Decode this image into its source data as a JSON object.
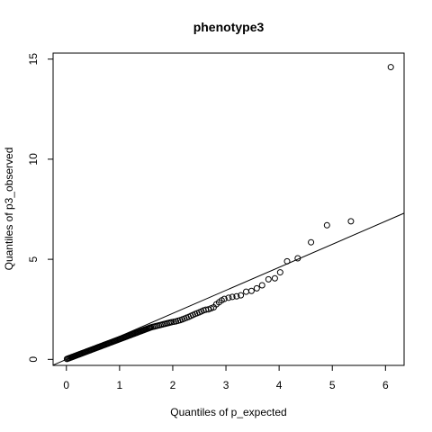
{
  "chart_data": {
    "type": "scatter",
    "title": "phenotype3",
    "xlabel": "Quantiles of p_expected",
    "ylabel": "Quantiles of p3_observed",
    "xlim": [
      -0.25,
      6.35
    ],
    "ylim": [
      -0.3,
      15.3
    ],
    "x_ticks": [
      0,
      1,
      2,
      3,
      4,
      5,
      6
    ],
    "y_ticks": [
      0,
      5,
      10,
      15
    ],
    "grid": false,
    "legend": "none",
    "reference_line": {
      "slope": 1.15,
      "intercept": 0.0
    },
    "points": [
      [
        0.01,
        0.02
      ],
      [
        0.03,
        0.04
      ],
      [
        0.05,
        0.06
      ],
      [
        0.07,
        0.08
      ],
      [
        0.09,
        0.1
      ],
      [
        0.11,
        0.12
      ],
      [
        0.13,
        0.14
      ],
      [
        0.15,
        0.16
      ],
      [
        0.17,
        0.18
      ],
      [
        0.19,
        0.2
      ],
      [
        0.21,
        0.22
      ],
      [
        0.23,
        0.24
      ],
      [
        0.25,
        0.26
      ],
      [
        0.27,
        0.28
      ],
      [
        0.29,
        0.3
      ],
      [
        0.31,
        0.32
      ],
      [
        0.33,
        0.34
      ],
      [
        0.35,
        0.36
      ],
      [
        0.37,
        0.38
      ],
      [
        0.39,
        0.4
      ],
      [
        0.41,
        0.42
      ],
      [
        0.43,
        0.44
      ],
      [
        0.45,
        0.46
      ],
      [
        0.47,
        0.48
      ],
      [
        0.49,
        0.5
      ],
      [
        0.51,
        0.52
      ],
      [
        0.53,
        0.54
      ],
      [
        0.55,
        0.56
      ],
      [
        0.57,
        0.58
      ],
      [
        0.59,
        0.6
      ],
      [
        0.61,
        0.62
      ],
      [
        0.63,
        0.64
      ],
      [
        0.65,
        0.66
      ],
      [
        0.67,
        0.68
      ],
      [
        0.69,
        0.7
      ],
      [
        0.71,
        0.72
      ],
      [
        0.73,
        0.74
      ],
      [
        0.75,
        0.76
      ],
      [
        0.77,
        0.78
      ],
      [
        0.79,
        0.8
      ],
      [
        0.81,
        0.82
      ],
      [
        0.83,
        0.84
      ],
      [
        0.85,
        0.86
      ],
      [
        0.87,
        0.88
      ],
      [
        0.89,
        0.9
      ],
      [
        0.91,
        0.92
      ],
      [
        0.93,
        0.94
      ],
      [
        0.95,
        0.96
      ],
      [
        0.97,
        0.98
      ],
      [
        0.99,
        1.0
      ],
      [
        1.01,
        1.02
      ],
      [
        1.03,
        1.04
      ],
      [
        1.05,
        1.06
      ],
      [
        1.07,
        1.08
      ],
      [
        1.09,
        1.1
      ],
      [
        1.11,
        1.12
      ],
      [
        1.13,
        1.14
      ],
      [
        1.15,
        1.16
      ],
      [
        1.17,
        1.18
      ],
      [
        1.19,
        1.2
      ],
      [
        1.21,
        1.22
      ],
      [
        1.23,
        1.24
      ],
      [
        1.25,
        1.26
      ],
      [
        1.27,
        1.28
      ],
      [
        1.29,
        1.3
      ],
      [
        1.31,
        1.32
      ],
      [
        1.33,
        1.34
      ],
      [
        1.35,
        1.36
      ],
      [
        1.37,
        1.38
      ],
      [
        1.39,
        1.4
      ],
      [
        1.41,
        1.42
      ],
      [
        1.43,
        1.44
      ],
      [
        1.45,
        1.46
      ],
      [
        1.47,
        1.48
      ],
      [
        1.49,
        1.5
      ],
      [
        1.51,
        1.52
      ],
      [
        1.53,
        1.54
      ],
      [
        1.55,
        1.56
      ],
      [
        1.57,
        1.58
      ],
      [
        1.59,
        1.6
      ],
      [
        1.62,
        1.62
      ],
      [
        1.65,
        1.64
      ],
      [
        1.68,
        1.66
      ],
      [
        1.71,
        1.68
      ],
      [
        1.74,
        1.7
      ],
      [
        1.77,
        1.72
      ],
      [
        1.8,
        1.74
      ],
      [
        1.83,
        1.76
      ],
      [
        1.86,
        1.78
      ],
      [
        1.89,
        1.8
      ],
      [
        1.92,
        1.82
      ],
      [
        1.95,
        1.84
      ],
      [
        1.98,
        1.86
      ],
      [
        2.02,
        1.88
      ],
      [
        2.06,
        1.9
      ],
      [
        2.1,
        1.93
      ],
      [
        2.14,
        1.96
      ],
      [
        2.18,
        2.0
      ],
      [
        2.22,
        2.04
      ],
      [
        2.26,
        2.08
      ],
      [
        2.3,
        2.12
      ],
      [
        2.34,
        2.17
      ],
      [
        2.38,
        2.22
      ],
      [
        2.42,
        2.27
      ],
      [
        2.46,
        2.31
      ],
      [
        2.5,
        2.35
      ],
      [
        2.54,
        2.4
      ],
      [
        2.58,
        2.45
      ],
      [
        2.62,
        2.48
      ],
      [
        2.67,
        2.5
      ],
      [
        2.72,
        2.55
      ],
      [
        2.77,
        2.6
      ],
      [
        2.82,
        2.75
      ],
      [
        2.87,
        2.85
      ],
      [
        2.92,
        2.95
      ],
      [
        2.97,
        3.02
      ],
      [
        3.05,
        3.08
      ],
      [
        3.12,
        3.12
      ],
      [
        3.2,
        3.15
      ],
      [
        3.28,
        3.2
      ],
      [
        3.38,
        3.38
      ],
      [
        3.48,
        3.42
      ],
      [
        3.58,
        3.55
      ],
      [
        3.68,
        3.7
      ],
      [
        3.8,
        4.0
      ],
      [
        3.92,
        4.05
      ],
      [
        4.02,
        4.35
      ],
      [
        4.15,
        4.9
      ],
      [
        4.35,
        5.05
      ],
      [
        4.6,
        5.85
      ],
      [
        4.9,
        6.7
      ],
      [
        5.35,
        6.9
      ],
      [
        6.1,
        14.6
      ]
    ]
  }
}
